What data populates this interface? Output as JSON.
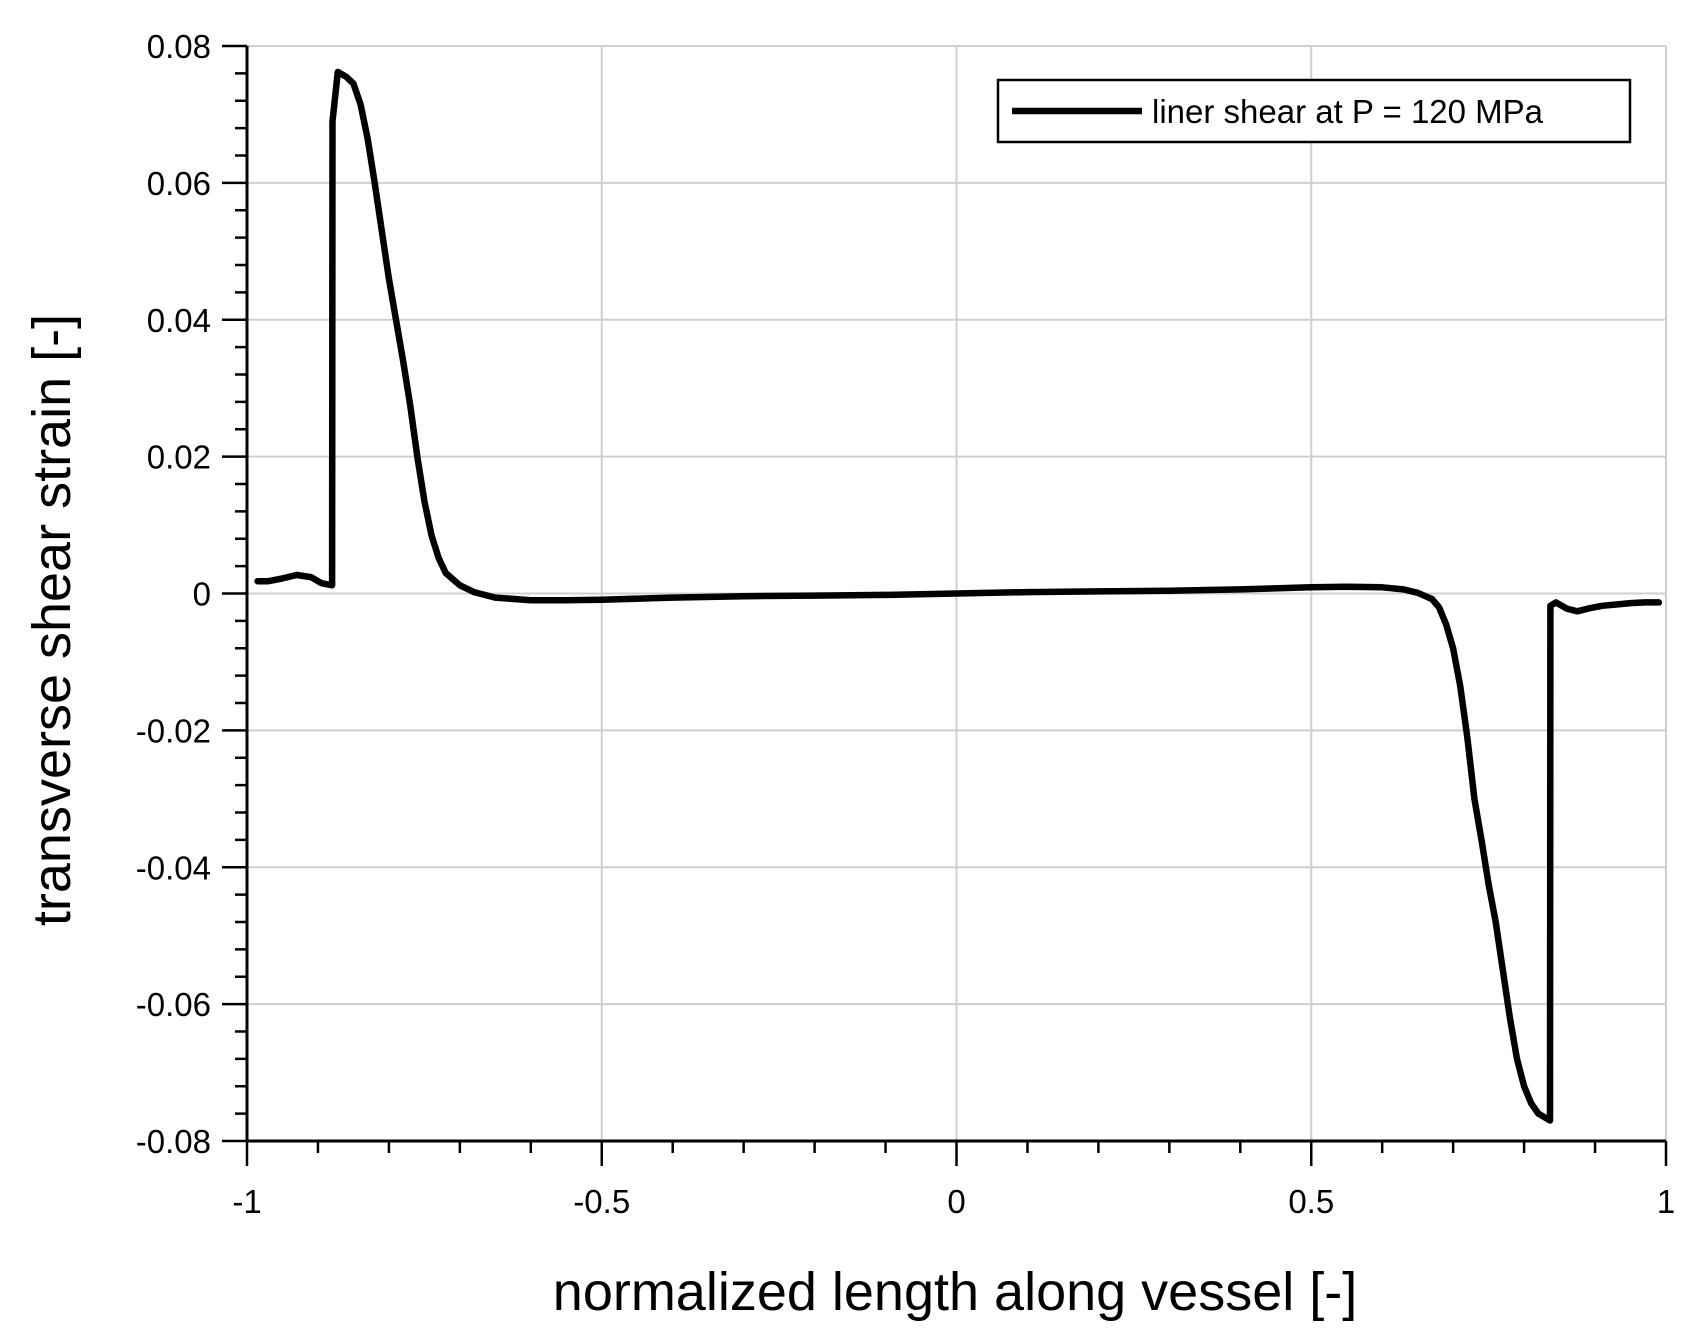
{
  "chart_data": {
    "type": "line",
    "title": "",
    "xlabel": "normalized length along vessel [-]",
    "ylabel": "transverse shear strain [-]",
    "xlim": [
      -1,
      1
    ],
    "ylim": [
      -0.08,
      0.08
    ],
    "grid": true,
    "legend_position": "top-right",
    "x_ticks": [
      -1,
      -0.5,
      0,
      0.5,
      1
    ],
    "x_tick_labels": [
      "-1",
      "-0.5",
      "0",
      "0.5",
      "1"
    ],
    "y_ticks": [
      0.08,
      0.06,
      0.04,
      0.02,
      0,
      -0.02,
      -0.04,
      -0.06,
      -0.08
    ],
    "y_tick_labels": [
      "0.08",
      "0.06",
      "0.04",
      "0.02",
      "0",
      "-0.02",
      "-0.04",
      "-0.06",
      "-0.08"
    ],
    "colors": {
      "series": "#000000",
      "grid": "#cfcfcf",
      "axis": "#000000"
    },
    "series": [
      {
        "name": "liner shear at P = 120 MPa",
        "points": [
          [
            -0.985,
            0.0018
          ],
          [
            -0.97,
            0.0018
          ],
          [
            -0.95,
            0.0022
          ],
          [
            -0.93,
            0.0027
          ],
          [
            -0.91,
            0.0024
          ],
          [
            -0.895,
            0.0015
          ],
          [
            -0.88,
            0.0012
          ],
          [
            -0.8795,
            0.069
          ],
          [
            -0.872,
            0.0762
          ],
          [
            -0.86,
            0.0755
          ],
          [
            -0.85,
            0.0745
          ],
          [
            -0.84,
            0.0715
          ],
          [
            -0.83,
            0.0665
          ],
          [
            -0.82,
            0.06
          ],
          [
            -0.81,
            0.053
          ],
          [
            -0.8,
            0.046
          ],
          [
            -0.79,
            0.04
          ],
          [
            -0.78,
            0.034
          ],
          [
            -0.77,
            0.0275
          ],
          [
            -0.76,
            0.02
          ],
          [
            -0.75,
            0.0135
          ],
          [
            -0.74,
            0.0085
          ],
          [
            -0.73,
            0.0052
          ],
          [
            -0.72,
            0.003
          ],
          [
            -0.7,
            0.0012
          ],
          [
            -0.68,
            0.0002
          ],
          [
            -0.65,
            -0.0006
          ],
          [
            -0.6,
            -0.001
          ],
          [
            -0.55,
            -0.001
          ],
          [
            -0.5,
            -0.0009
          ],
          [
            -0.4,
            -0.0006
          ],
          [
            -0.3,
            -0.0004
          ],
          [
            -0.2,
            -0.0003
          ],
          [
            -0.1,
            -0.0002
          ],
          [
            0,
            0
          ],
          [
            0.1,
            0.0002
          ],
          [
            0.2,
            0.0003
          ],
          [
            0.3,
            0.0004
          ],
          [
            0.4,
            0.0006
          ],
          [
            0.5,
            0.0009
          ],
          [
            0.55,
            0.001
          ],
          [
            0.6,
            0.0009
          ],
          [
            0.63,
            0.0006
          ],
          [
            0.65,
            0.0001
          ],
          [
            0.67,
            -0.0008
          ],
          [
            0.68,
            -0.002
          ],
          [
            0.69,
            -0.0045
          ],
          [
            0.7,
            -0.008
          ],
          [
            0.71,
            -0.0135
          ],
          [
            0.72,
            -0.021
          ],
          [
            0.73,
            -0.03
          ],
          [
            0.74,
            -0.036
          ],
          [
            0.75,
            -0.0425
          ],
          [
            0.76,
            -0.048
          ],
          [
            0.77,
            -0.055
          ],
          [
            0.78,
            -0.062
          ],
          [
            0.79,
            -0.068
          ],
          [
            0.8,
            -0.072
          ],
          [
            0.81,
            -0.0745
          ],
          [
            0.82,
            -0.076
          ],
          [
            0.8365,
            -0.077
          ],
          [
            0.837,
            -0.0018
          ],
          [
            0.845,
            -0.0013
          ],
          [
            0.86,
            -0.0022
          ],
          [
            0.875,
            -0.0026
          ],
          [
            0.89,
            -0.0022
          ],
          [
            0.91,
            -0.0018
          ],
          [
            0.93,
            -0.0016
          ],
          [
            0.95,
            -0.0014
          ],
          [
            0.97,
            -0.0013
          ],
          [
            0.99,
            -0.0013
          ]
        ]
      }
    ]
  }
}
